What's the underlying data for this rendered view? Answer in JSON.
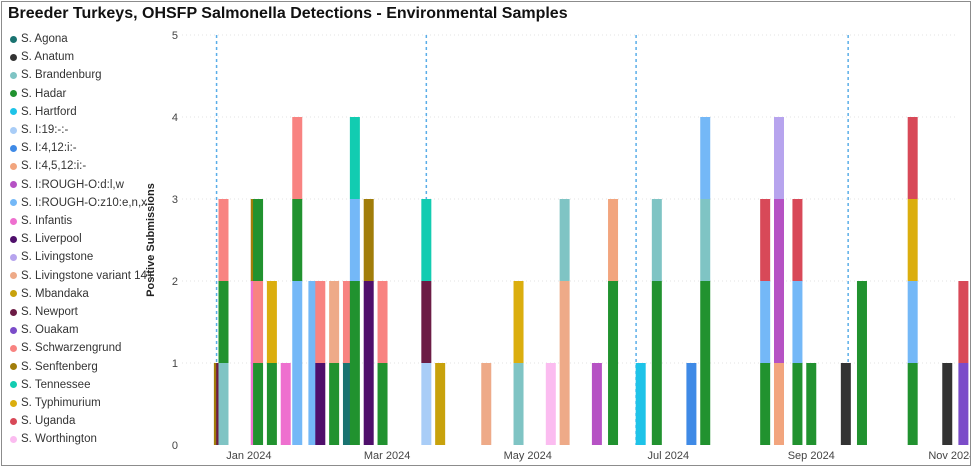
{
  "title": "Breeder Turkeys, OHSFP Salmonella Detections - Environmental Samples",
  "chart_data": {
    "type": "bar",
    "stacked": true,
    "title": "Breeder Turkeys, OHSFP Salmonella Detections - Environmental Samples",
    "xlabel": "",
    "ylabel": "Positive Submissions",
    "ylim": [
      0,
      5
    ],
    "yticks": [
      0,
      1,
      2,
      3,
      4,
      5
    ],
    "grid": true,
    "legend_position": "left",
    "x_axis": {
      "type": "date",
      "range": [
        "2023-12-17",
        "2024-11-30"
      ],
      "ticks": [
        {
          "date": "2024-01-15",
          "label": "Jan 2024"
        },
        {
          "date": "2024-03-15",
          "label": "Mar 2024"
        },
        {
          "date": "2024-05-15",
          "label": "May 2024"
        },
        {
          "date": "2024-07-15",
          "label": "Jul 2024"
        },
        {
          "date": "2024-09-15",
          "label": "Sep 2024"
        },
        {
          "date": "2024-11-15",
          "label": "Nov 2024"
        }
      ],
      "quarter_lines": [
        "2024-01-01",
        "2024-04-01",
        "2024-07-01",
        "2024-10-01",
        "2025-01-01"
      ]
    },
    "legend": [
      {
        "name": "S. Agona",
        "color": "#1a7371"
      },
      {
        "name": "S. Anatum",
        "color": "#333333"
      },
      {
        "name": "S. Brandenburg",
        "color": "#7fc4c4"
      },
      {
        "name": "S. Hadar",
        "color": "#21922f"
      },
      {
        "name": "S. Hartford",
        "color": "#1ec3e8"
      },
      {
        "name": "S. I:19:-:-",
        "color": "#a9cdf7"
      },
      {
        "name": "S. I:4,12:i:-",
        "color": "#3f8ae6"
      },
      {
        "name": "S. I:4,5,12:i:-",
        "color": "#f2a57e"
      },
      {
        "name": "S. I:ROUGH-O:d:l,w",
        "color": "#b652c4"
      },
      {
        "name": "S. I:ROUGH-O:z10:e,n,x",
        "color": "#74b8f7"
      },
      {
        "name": "S. Infantis",
        "color": "#ee70cf"
      },
      {
        "name": "S. Liverpool",
        "color": "#4f0f6b"
      },
      {
        "name": "S. Livingstone",
        "color": "#b7a4ee"
      },
      {
        "name": "S. Livingstone variant 14+",
        "color": "#eeaa88"
      },
      {
        "name": "S. Mbandaka",
        "color": "#c8a20c"
      },
      {
        "name": "S. Newport",
        "color": "#6c1c45"
      },
      {
        "name": "S. Ouakam",
        "color": "#7b4cc9"
      },
      {
        "name": "S. Schwarzengrund",
        "color": "#f88381"
      },
      {
        "name": "S. Senftenberg",
        "color": "#a17d0a"
      },
      {
        "name": "S. Tennessee",
        "color": "#12ccb1"
      },
      {
        "name": "S. Typhimurium",
        "color": "#dbae0e"
      },
      {
        "name": "S. Uganda",
        "color": "#d84958"
      },
      {
        "name": "S. Worthington",
        "color": "#fbbcf0"
      }
    ],
    "bars": [
      {
        "date": "2024-01-02",
        "segments": [
          {
            "series": "S. Senftenberg",
            "value": 1
          }
        ]
      },
      {
        "date": "2024-01-03",
        "segments": [
          {
            "series": "S. Newport",
            "value": 1
          }
        ]
      },
      {
        "date": "2024-01-04",
        "segments": [
          {
            "series": "S. Brandenburg",
            "value": 1
          },
          {
            "series": "S. Hadar",
            "value": 1
          },
          {
            "series": "S. Schwarzengrund",
            "value": 1
          }
        ]
      },
      {
        "date": "2024-01-18",
        "segments": [
          {
            "series": "S. Infantis",
            "value": 2
          },
          {
            "series": "S. Senftenberg",
            "value": 1
          }
        ]
      },
      {
        "date": "2024-01-19",
        "segments": [
          {
            "series": "S. Hadar",
            "value": 1
          },
          {
            "series": "S. Schwarzengrund",
            "value": 1
          },
          {
            "series": "S. Hadar",
            "value": 1
          }
        ]
      },
      {
        "date": "2024-01-25",
        "segments": [
          {
            "series": "S. Hadar",
            "value": 1
          },
          {
            "series": "S. Typhimurium",
            "value": 1
          }
        ]
      },
      {
        "date": "2024-01-31",
        "segments": [
          {
            "series": "S. Infantis",
            "value": 1
          }
        ]
      },
      {
        "date": "2024-02-05",
        "segments": [
          {
            "series": "S. I:ROUGH-O:z10:e,n,x",
            "value": 2
          },
          {
            "series": "S. Hadar",
            "value": 1
          },
          {
            "series": "S. Schwarzengrund",
            "value": 1
          }
        ]
      },
      {
        "date": "2024-02-12",
        "segments": [
          {
            "series": "S. I:ROUGH-O:z10:e,n,x",
            "value": 2
          }
        ]
      },
      {
        "date": "2024-02-15",
        "segments": [
          {
            "series": "S. Liverpool",
            "value": 1
          },
          {
            "series": "S. Schwarzengrund",
            "value": 1
          }
        ]
      },
      {
        "date": "2024-02-21",
        "segments": [
          {
            "series": "S. Hadar",
            "value": 1
          },
          {
            "series": "S. Livingstone variant 14+",
            "value": 1
          }
        ]
      },
      {
        "date": "2024-02-27",
        "segments": [
          {
            "series": "S. Agona",
            "value": 1
          },
          {
            "series": "S. Schwarzengrund",
            "value": 1
          }
        ]
      },
      {
        "date": "2024-03-01",
        "segments": [
          {
            "series": "S. Hadar",
            "value": 2
          },
          {
            "series": "S. I:ROUGH-O:z10:e,n,x",
            "value": 1
          },
          {
            "series": "S. Tennessee",
            "value": 1
          }
        ]
      },
      {
        "date": "2024-03-07",
        "segments": [
          {
            "series": "S. Liverpool",
            "value": 2
          },
          {
            "series": "S. Senftenberg",
            "value": 1
          }
        ]
      },
      {
        "date": "2024-03-13",
        "segments": [
          {
            "series": "S. Hadar",
            "value": 1
          },
          {
            "series": "S. Schwarzengrund",
            "value": 1
          }
        ]
      },
      {
        "date": "2024-04-01",
        "segments": [
          {
            "series": "S. I:19:-:-",
            "value": 1
          },
          {
            "series": "S. Newport",
            "value": 1
          },
          {
            "series": "S. Tennessee",
            "value": 1
          }
        ]
      },
      {
        "date": "2024-04-07",
        "segments": [
          {
            "series": "S. Mbandaka",
            "value": 1
          }
        ]
      },
      {
        "date": "2024-04-27",
        "segments": [
          {
            "series": "S. Livingstone variant 14+",
            "value": 1
          }
        ]
      },
      {
        "date": "2024-05-11",
        "segments": [
          {
            "series": "S. Brandenburg",
            "value": 1
          },
          {
            "series": "S. Typhimurium",
            "value": 1
          }
        ]
      },
      {
        "date": "2024-05-25",
        "segments": [
          {
            "series": "S. Worthington",
            "value": 1
          }
        ]
      },
      {
        "date": "2024-05-31",
        "segments": [
          {
            "series": "S. Livingstone variant 14+",
            "value": 2
          },
          {
            "series": "S. Brandenburg",
            "value": 1
          }
        ]
      },
      {
        "date": "2024-06-14",
        "segments": [
          {
            "series": "S. I:ROUGH-O:d:l,w",
            "value": 1
          }
        ]
      },
      {
        "date": "2024-06-21",
        "segments": [
          {
            "series": "S. Hadar",
            "value": 2
          },
          {
            "series": "S. I:4,5,12:i:-",
            "value": 1
          }
        ]
      },
      {
        "date": "2024-07-03",
        "segments": [
          {
            "series": "S. Hartford",
            "value": 1
          }
        ]
      },
      {
        "date": "2024-07-10",
        "segments": [
          {
            "series": "S. Hadar",
            "value": 2
          },
          {
            "series": "S. Brandenburg",
            "value": 1
          }
        ]
      },
      {
        "date": "2024-07-25",
        "segments": [
          {
            "series": "S. I:4,12:i:-",
            "value": 1
          }
        ]
      },
      {
        "date": "2024-07-31",
        "segments": [
          {
            "series": "S. Hadar",
            "value": 2
          },
          {
            "series": "S. Brandenburg",
            "value": 1
          },
          {
            "series": "S. I:ROUGH-O:z10:e,n,x",
            "value": 1
          }
        ]
      },
      {
        "date": "2024-08-26",
        "segments": [
          {
            "series": "S. Hadar",
            "value": 1
          },
          {
            "series": "S. I:ROUGH-O:z10:e,n,x",
            "value": 1
          },
          {
            "series": "S. Uganda",
            "value": 1
          }
        ]
      },
      {
        "date": "2024-09-01",
        "segments": [
          {
            "series": "S. Hadar",
            "value": 1
          },
          {
            "series": "S. I:ROUGH-O:d:l,w",
            "value": 2
          },
          {
            "series": "S. Livingstone",
            "value": 1
          }
        ]
      },
      {
        "date": "2024-09-01",
        "segments": [
          {
            "series": "S. I:4,5,12:i:-",
            "value": 1
          }
        ]
      },
      {
        "date": "2024-09-09",
        "segments": [
          {
            "series": "S. Hadar",
            "value": 1
          },
          {
            "series": "S. I:ROUGH-O:z10:e,n,x",
            "value": 1
          },
          {
            "series": "S. Uganda",
            "value": 1
          }
        ]
      },
      {
        "date": "2024-09-15",
        "segments": [
          {
            "series": "S. Hadar",
            "value": 1
          }
        ]
      },
      {
        "date": "2024-09-30",
        "segments": [
          {
            "series": "S. Anatum",
            "value": 1
          }
        ]
      },
      {
        "date": "2024-10-07",
        "segments": [
          {
            "series": "S. Hadar",
            "value": 2
          }
        ]
      },
      {
        "date": "2024-10-29",
        "segments": [
          {
            "series": "S. Hadar",
            "value": 1
          },
          {
            "series": "S. I:ROUGH-O:z10:e,n,x",
            "value": 1
          },
          {
            "series": "S. Typhimurium",
            "value": 1
          },
          {
            "series": "S. Uganda",
            "value": 1
          }
        ]
      },
      {
        "date": "2024-11-13",
        "segments": [
          {
            "series": "S. Anatum",
            "value": 1
          }
        ]
      },
      {
        "date": "2024-11-20",
        "segments": [
          {
            "series": "S. Ouakam",
            "value": 1
          },
          {
            "series": "S. Uganda",
            "value": 1
          }
        ]
      }
    ]
  }
}
